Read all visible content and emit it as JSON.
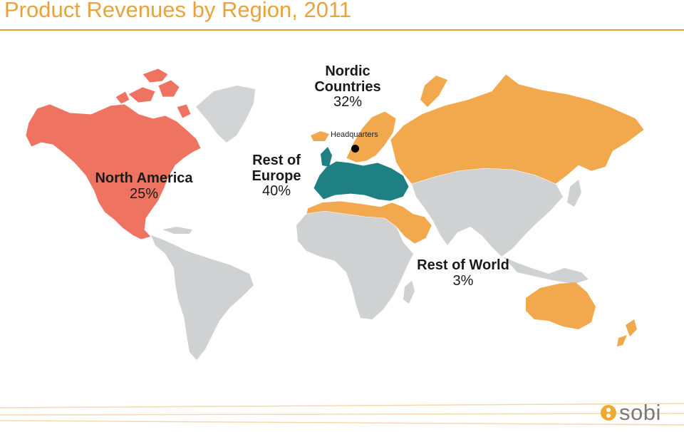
{
  "title": "Product Revenues by Region, 2011",
  "regions": {
    "north_america": {
      "name": "North America",
      "share": "25%",
      "color": "#ee7461"
    },
    "nordic": {
      "name_line1": "Nordic",
      "name_line2": "Countries",
      "share": "32%",
      "color": "#f2a84d"
    },
    "rest_of_europe": {
      "name_line1": "Rest of",
      "name_line2": "Europe",
      "share": "40%",
      "color": "#1e8083"
    },
    "rest_of_world": {
      "name": "Rest of World",
      "share": "3%",
      "color": "#f2a84d"
    },
    "no_data_color": "#cfd1d3"
  },
  "headquarters_label": "Headquarters",
  "logo": {
    "text": "sobi",
    "accent": "#f0a830"
  }
}
